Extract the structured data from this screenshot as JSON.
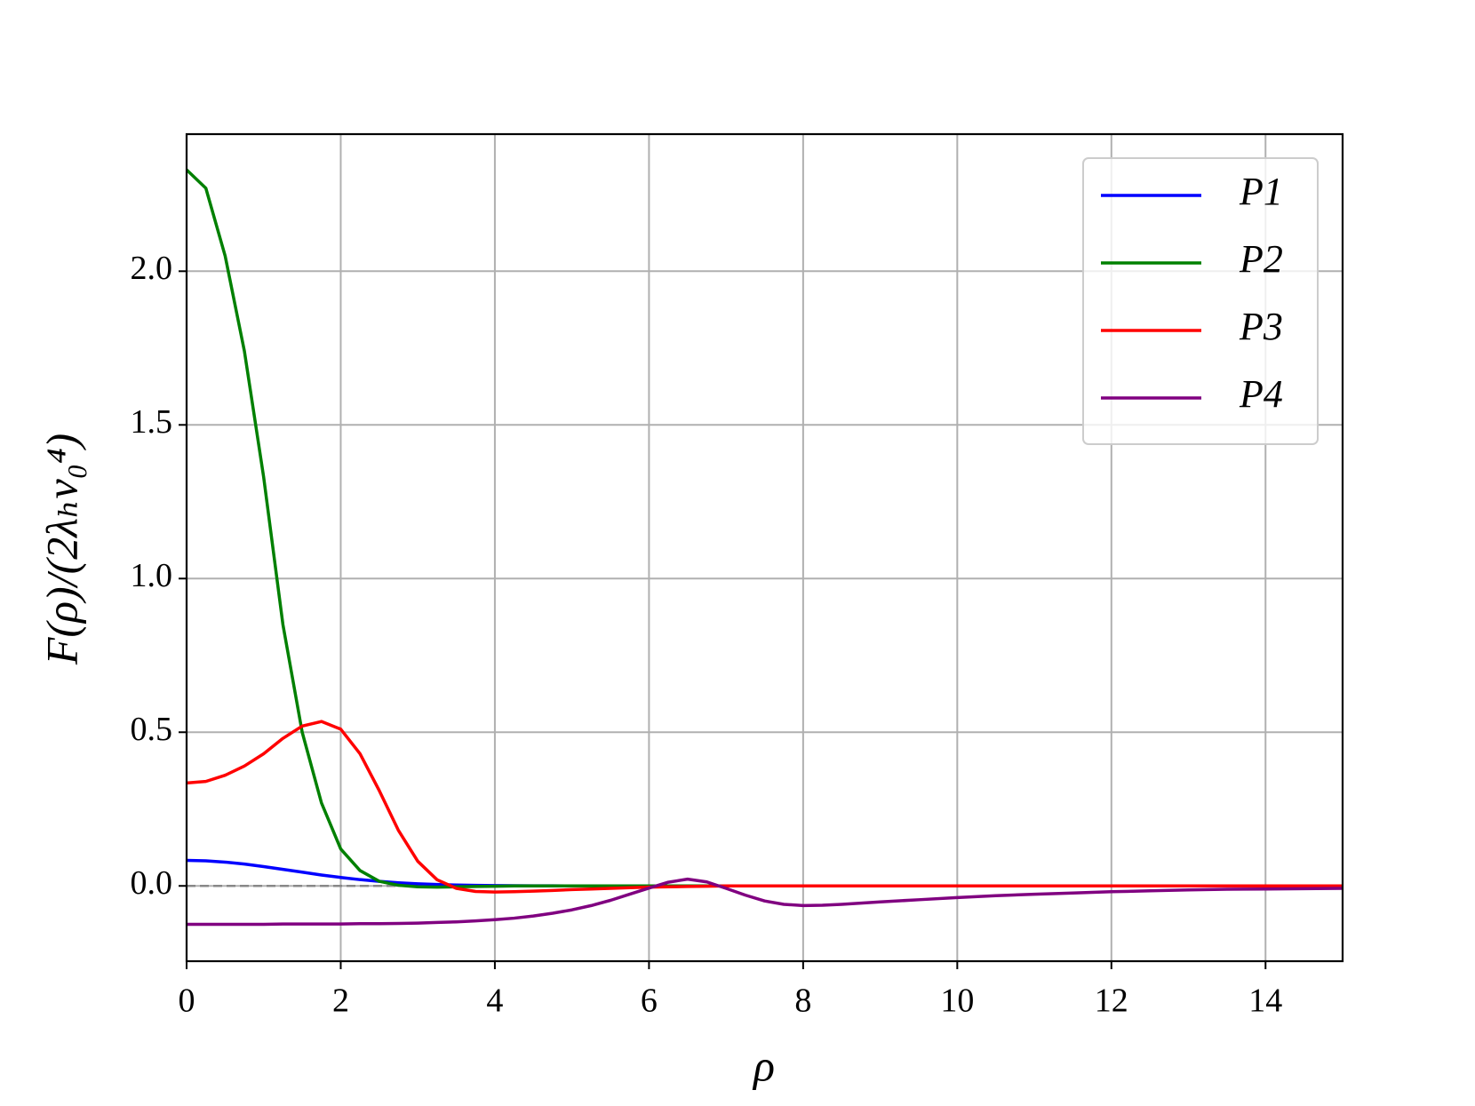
{
  "chart_data": {
    "type": "line",
    "x_label": "ρ",
    "y_label": "F(ρ)/(2λₕv₀⁴)",
    "x": [
      0,
      0.25,
      0.5,
      0.75,
      1,
      1.25,
      1.5,
      1.75,
      2,
      2.25,
      2.5,
      2.75,
      3,
      3.25,
      3.5,
      3.75,
      4,
      4.25,
      4.5,
      4.75,
      5,
      5.25,
      5.5,
      5.75,
      6,
      6.25,
      6.5,
      6.75,
      7,
      7.25,
      7.5,
      7.75,
      8,
      8.25,
      8.5,
      8.75,
      9,
      9.5,
      10,
      10.5,
      11,
      11.5,
      12,
      12.5,
      13,
      13.5,
      14,
      14.5,
      15
    ],
    "series": [
      {
        "name": "P1",
        "color": "#0000ff",
        "values": [
          0.083,
          0.0816,
          0.0774,
          0.071,
          0.0628,
          0.0538,
          0.0447,
          0.0355,
          0.0275,
          0.0204,
          0.0147,
          0.0102,
          0.0069,
          0.0045,
          0.0028,
          0.0017,
          0.001,
          0.0006,
          0.0003,
          0.0002,
          0.0001,
          0,
          0,
          0,
          0,
          0,
          0,
          0,
          0,
          0,
          0,
          0,
          0,
          0,
          0,
          0,
          0,
          0,
          0,
          0,
          0,
          0,
          0,
          0,
          0,
          0,
          0,
          0,
          0
        ]
      },
      {
        "name": "P2",
        "color": "#008000",
        "values": [
          2.33,
          2.27,
          2.05,
          1.74,
          1.33,
          0.85,
          0.5,
          0.27,
          0.12,
          0.05,
          0.015,
          0.002,
          -0.003,
          -0.004,
          -0.003,
          -0.002,
          -0.001,
          0,
          0,
          0,
          0,
          0,
          0,
          0,
          0,
          0,
          0,
          0,
          0,
          0,
          0,
          0,
          0,
          0,
          0,
          0,
          0,
          0,
          0,
          0,
          0,
          0,
          0,
          0,
          0,
          0,
          0,
          0,
          0
        ]
      },
      {
        "name": "P3",
        "color": "#ff0000",
        "values": [
          0.335,
          0.34,
          0.36,
          0.39,
          0.43,
          0.48,
          0.52,
          0.535,
          0.51,
          0.43,
          0.31,
          0.18,
          0.08,
          0.02,
          -0.008,
          -0.018,
          -0.02,
          -0.019,
          -0.017,
          -0.015,
          -0.012,
          -0.01,
          -0.008,
          -0.006,
          -0.004,
          -0.003,
          -0.002,
          -0.001,
          0,
          0,
          0,
          0,
          0,
          0,
          0,
          0,
          0,
          0,
          0,
          0,
          0,
          0,
          0,
          0,
          0,
          0,
          0,
          0,
          0
        ]
      },
      {
        "name": "P4",
        "color": "#800080",
        "values": [
          -0.125,
          -0.125,
          -0.125,
          -0.125,
          -0.125,
          -0.124,
          -0.124,
          -0.124,
          -0.124,
          -0.123,
          -0.123,
          -0.122,
          -0.121,
          -0.119,
          -0.117,
          -0.114,
          -0.11,
          -0.105,
          -0.098,
          -0.089,
          -0.078,
          -0.064,
          -0.047,
          -0.027,
          -0.007,
          0.012,
          0.022,
          0.013,
          -0.008,
          -0.03,
          -0.049,
          -0.06,
          -0.064,
          -0.063,
          -0.06,
          -0.056,
          -0.052,
          -0.045,
          -0.038,
          -0.032,
          -0.027,
          -0.023,
          -0.019,
          -0.016,
          -0.013,
          -0.011,
          -0.01,
          -0.009,
          -0.008
        ]
      }
    ],
    "xlim": [
      0,
      15
    ],
    "ylim": [
      -0.245,
      2.446
    ],
    "xticks": [
      0,
      2,
      4,
      6,
      8,
      10,
      12,
      14
    ],
    "yticks": [
      {
        "value": 0,
        "label": "0.0"
      },
      0.5,
      {
        "value": 1,
        "label": "1.0"
      },
      1.5,
      {
        "value": 2,
        "label": "2.0"
      }
    ],
    "hline": 0,
    "grid": true,
    "legend": "upper right"
  }
}
